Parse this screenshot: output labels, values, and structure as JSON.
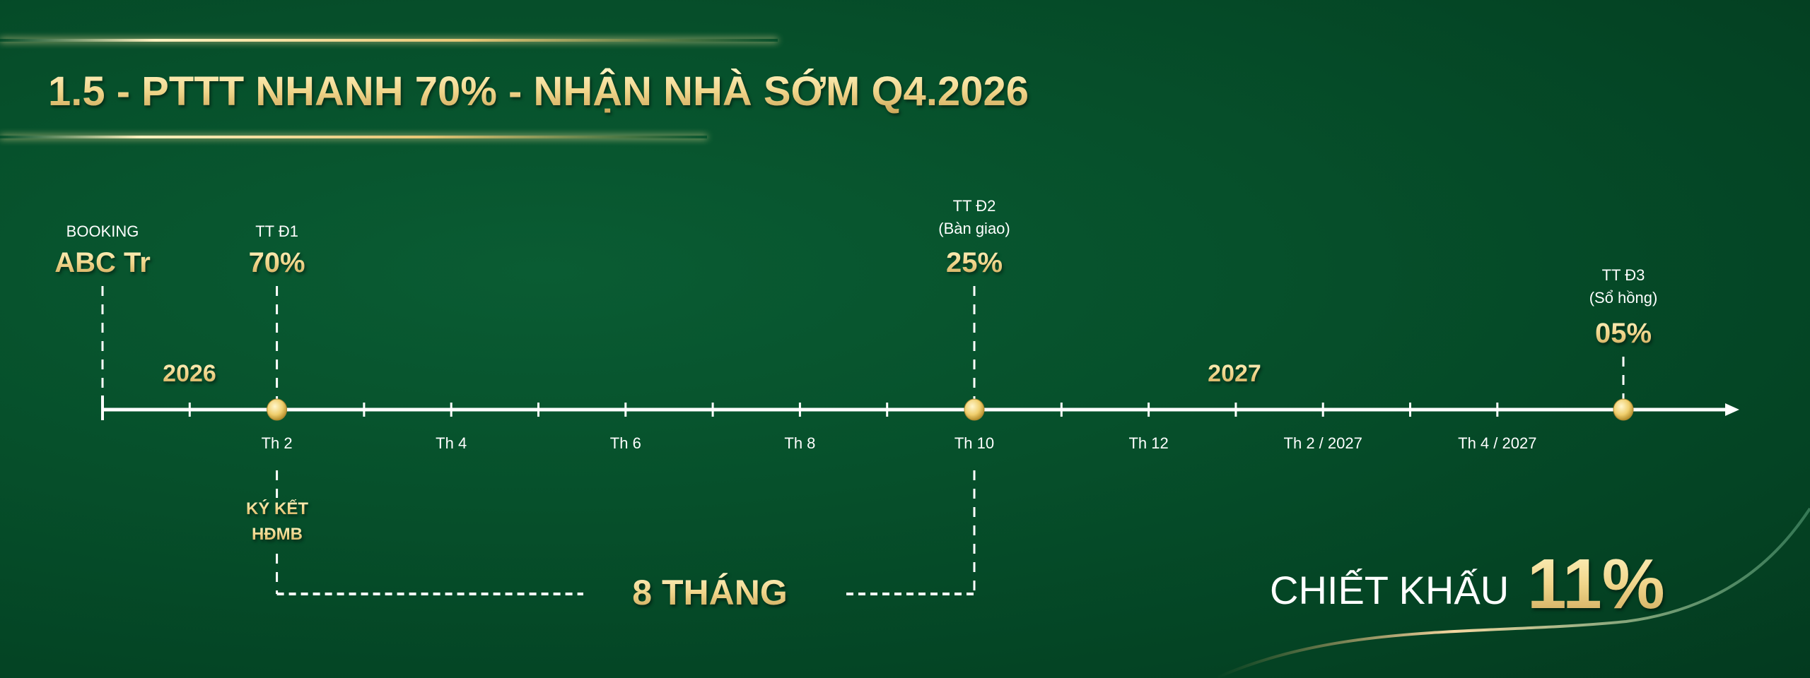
{
  "title": "1.5 - PTTT NHANH 70% - NHẬN NHÀ SỚM Q4.2026",
  "colors": {
    "gold": "#f1d98f",
    "background": "#06502b",
    "line": "#ffffff"
  },
  "milestones": [
    {
      "label": "BOOKING",
      "sublabel": "",
      "value": "ABC Tr"
    },
    {
      "label": "TT Đ1",
      "sublabel": "",
      "value": "70%"
    },
    {
      "label": "TT Đ2",
      "sublabel": "(Bàn giao)",
      "value": "25%"
    },
    {
      "label": "TT Đ3",
      "sublabel": "(Sổ hồng)",
      "value": "05%"
    }
  ],
  "years": [
    "2026",
    "2027"
  ],
  "months": [
    "Th 2",
    "Th 4",
    "Th 6",
    "Th 8",
    "Th 10",
    "Th 12",
    "Th 2 / 2027",
    "Th 4 / 2027"
  ],
  "contract": {
    "line1": "KÝ KẾT",
    "line2": "HĐMB"
  },
  "duration": "8 THÁNG",
  "discount": {
    "label": "CHIẾT KHẤU",
    "value": "11%"
  }
}
